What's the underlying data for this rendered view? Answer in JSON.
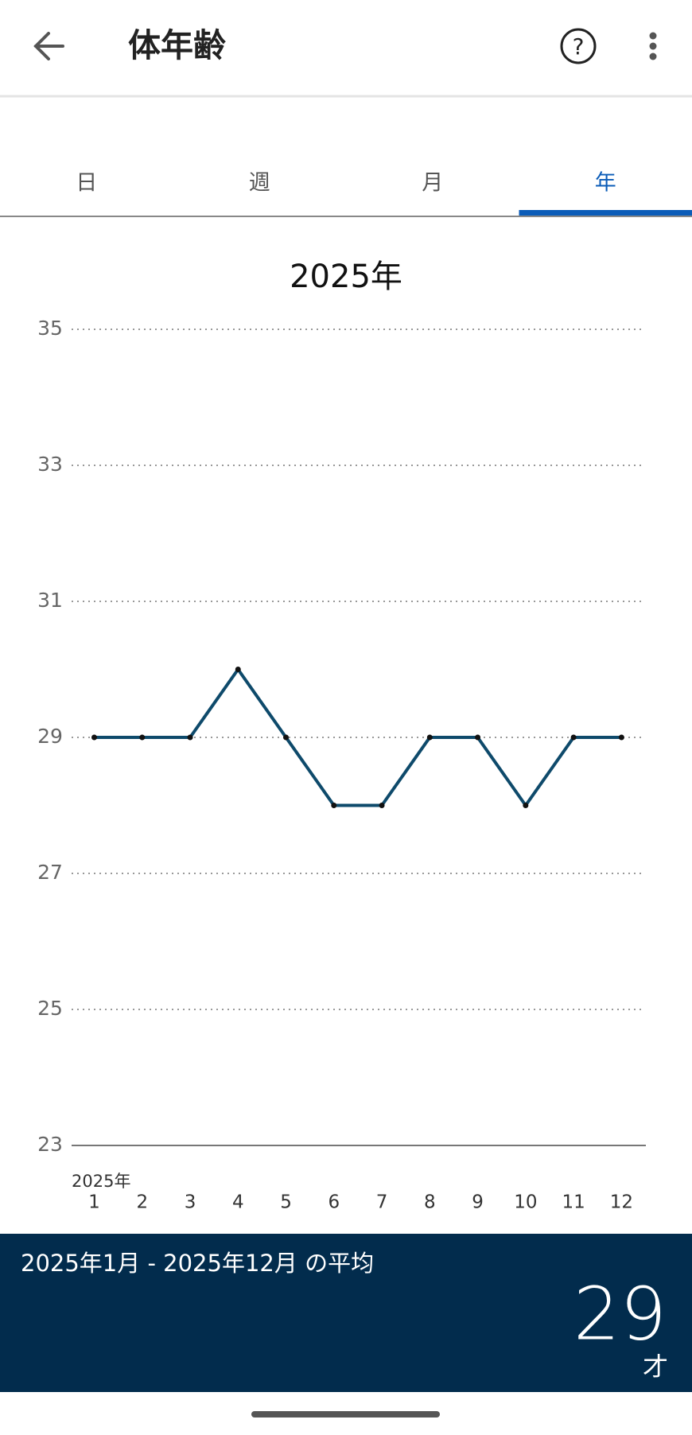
{
  "header": {
    "title": "体年齢"
  },
  "tabs": [
    "日",
    "週",
    "月",
    "年"
  ],
  "active_tab": 3,
  "chart_data": {
    "type": "line",
    "title": "2025年",
    "x_year_label": "2025年",
    "categories": [
      "1",
      "2",
      "3",
      "4",
      "5",
      "6",
      "7",
      "8",
      "9",
      "10",
      "11",
      "12"
    ],
    "series": [
      {
        "name": "体年齢",
        "color": "#0e4a6b",
        "values": [
          29,
          29,
          29,
          30,
          29,
          28,
          28,
          29,
          29,
          28,
          29,
          29
        ]
      }
    ],
    "ylim": [
      23,
      35
    ],
    "yticks": [
      23,
      25,
      27,
      29,
      31,
      33,
      35
    ],
    "grid": true
  },
  "summary": {
    "label": "2025年1月 - 2025年12月 の平均",
    "value": 29,
    "unit": "才"
  }
}
